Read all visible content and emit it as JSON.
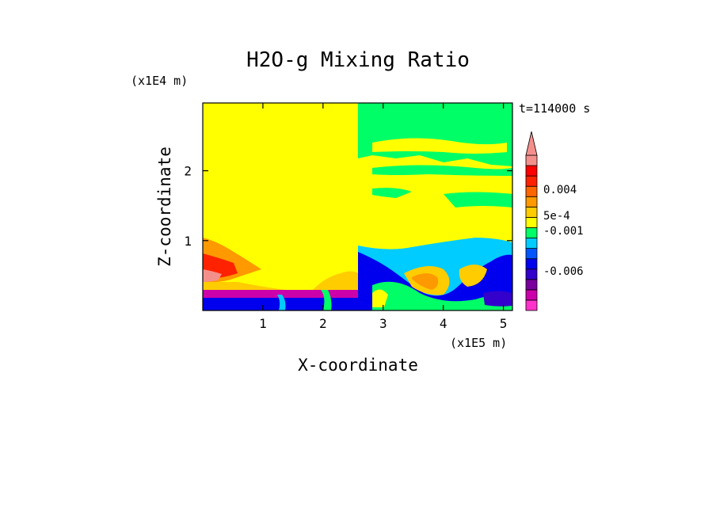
{
  "chart_data": {
    "type": "heatmap",
    "title": "H2O-g Mixing Ratio",
    "time_label": "t=114000 s",
    "xlabel": "X-coordinate",
    "ylabel": "Z-coordinate",
    "x_unit": "(x1E5 m)",
    "y_unit": "(x1E4 m)",
    "xlim": [
      0,
      5.15
    ],
    "ylim": [
      0,
      2.97
    ],
    "x_ticks": [
      1,
      2,
      3,
      4,
      5
    ],
    "y_ticks": [
      1,
      2
    ],
    "colorbar": {
      "levels": [
        "#ff33cc",
        "#cc00aa",
        "#7a009e",
        "#3300cc",
        "#0000ee",
        "#0055ff",
        "#00ccff",
        "#00ff66",
        "#ffff00",
        "#ffcc00",
        "#ff9900",
        "#ff6600",
        "#ff2200",
        "#ff0000",
        "#f4908c"
      ],
      "labels": [
        {
          "text": "0.004",
          "value": 0.004
        },
        {
          "text": "5e-4",
          "value": 0.0005
        },
        {
          "text": "-0.001",
          "value": -0.001
        },
        {
          "text": "-0.006",
          "value": -0.006
        }
      ],
      "extend": "max"
    }
  }
}
